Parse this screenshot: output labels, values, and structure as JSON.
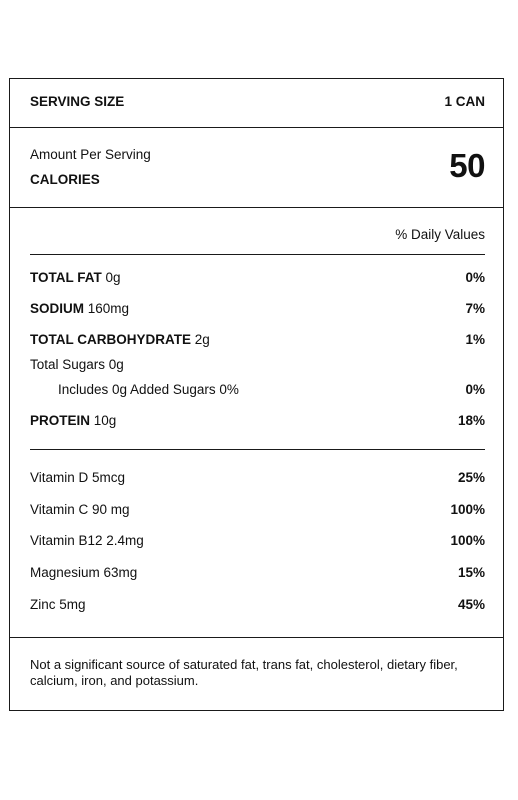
{
  "serving": {
    "label": "SERVING SIZE",
    "value": "1 CAN"
  },
  "calories": {
    "amount_label": "Amount Per Serving",
    "label": "CALORIES",
    "value": "50"
  },
  "dv_header": "% Daily Values",
  "nutrients": [
    {
      "name": "TOTAL FAT",
      "amount": "0g",
      "dv": "0%"
    },
    {
      "name": "SODIUM",
      "amount": "160mg",
      "dv": "7%"
    },
    {
      "name": "TOTAL CARBOHYDRATE",
      "amount": "2g",
      "dv": "1%"
    },
    {
      "name": "Total Sugars 0g",
      "amount": "",
      "dv": ""
    },
    {
      "name": "Includes 0g Added Sugars 0%",
      "amount": "",
      "dv": "0%"
    },
    {
      "name": "PROTEIN",
      "amount": "10g",
      "dv": "18%"
    }
  ],
  "vitamins": [
    {
      "name": "Vitamin D 5mcg",
      "dv": "25%"
    },
    {
      "name": "Vitamin C 90 mg",
      "dv": "100%"
    },
    {
      "name": "Vitamin B12 2.4mg",
      "dv": "100%"
    },
    {
      "name": "Magnesium 63mg",
      "dv": "15%"
    },
    {
      "name": "Zinc 5mg",
      "dv": "45%"
    }
  ],
  "footnote": "Not a significant source of saturated fat, trans fat, cholesterol, dietary fiber, calcium, iron, and potassium."
}
